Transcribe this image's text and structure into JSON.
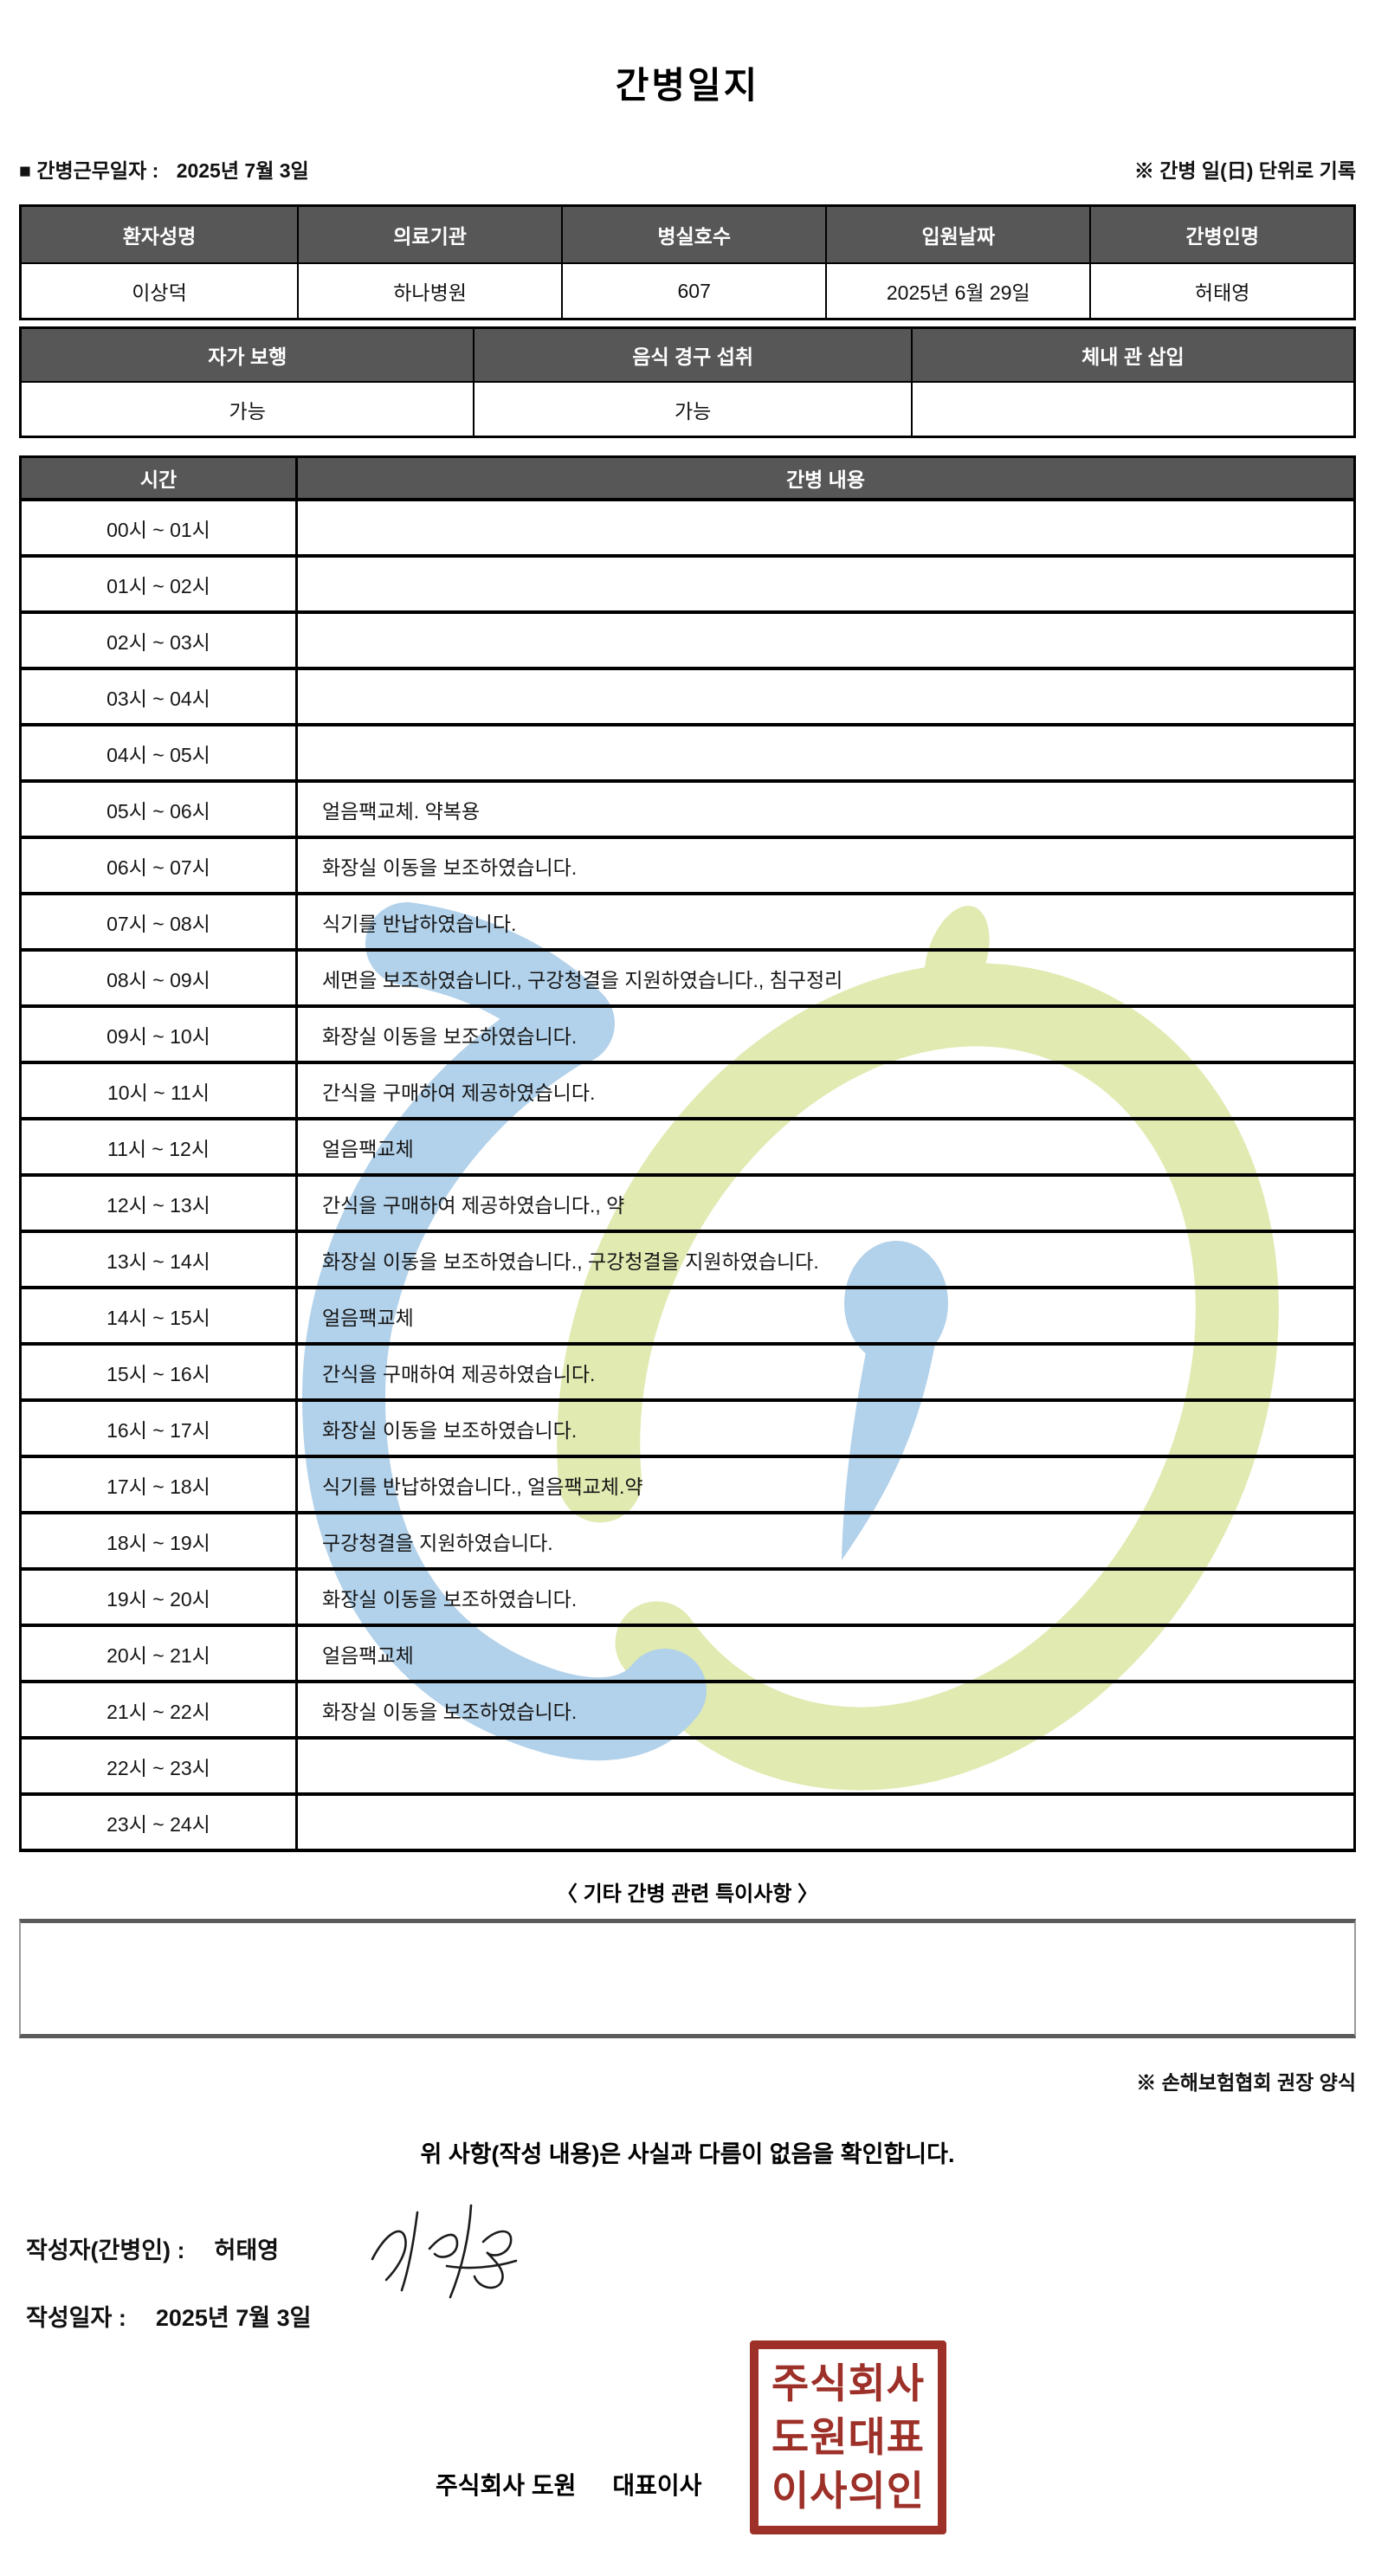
{
  "title": "간병일지",
  "meta": {
    "work_date_label": "■ 간병근무일자 :",
    "work_date_value": "2025년 7월 3일",
    "unit_note": "※ 간병 일(日) 단위로 기록"
  },
  "patient_table": {
    "headers": [
      "환자성명",
      "의료기관",
      "병실호수",
      "입원날짜",
      "간병인명"
    ],
    "values": [
      "이상덕",
      "하나병원",
      "607",
      "2025년 6월 29일",
      "허태영"
    ]
  },
  "status_table": {
    "headers": [
      "자가 보행",
      "음식 경구 섭취",
      "체내 관 삽입"
    ],
    "values": [
      "가능",
      "가능",
      ""
    ]
  },
  "log_table": {
    "time_header": "시간",
    "content_header": "간병 내용",
    "rows": [
      {
        "time": "00시 ~ 01시",
        "content": ""
      },
      {
        "time": "01시 ~ 02시",
        "content": ""
      },
      {
        "time": "02시 ~ 03시",
        "content": ""
      },
      {
        "time": "03시 ~ 04시",
        "content": ""
      },
      {
        "time": "04시 ~ 05시",
        "content": ""
      },
      {
        "time": "05시 ~ 06시",
        "content": "얼음팩교체. 약복용"
      },
      {
        "time": "06시 ~ 07시",
        "content": "화장실 이동을 보조하였습니다."
      },
      {
        "time": "07시 ~ 08시",
        "content": "식기를 반납하였습니다."
      },
      {
        "time": "08시 ~ 09시",
        "content": "세면을 보조하였습니다., 구강청결을 지원하였습니다., 침구정리"
      },
      {
        "time": "09시 ~ 10시",
        "content": "화장실 이동을 보조하였습니다."
      },
      {
        "time": "10시 ~ 11시",
        "content": "간식을 구매하여 제공하였습니다."
      },
      {
        "time": "11시 ~ 12시",
        "content": "얼음팩교체"
      },
      {
        "time": "12시 ~ 13시",
        "content": "간식을 구매하여 제공하였습니다., 약"
      },
      {
        "time": "13시 ~ 14시",
        "content": "화장실 이동을 보조하였습니다., 구강청결을 지원하였습니다."
      },
      {
        "time": "14시 ~ 15시",
        "content": "얼음팩교체"
      },
      {
        "time": "15시 ~ 16시",
        "content": "간식을 구매하여 제공하였습니다."
      },
      {
        "time": "16시 ~ 17시",
        "content": "화장실 이동을 보조하였습니다."
      },
      {
        "time": "17시 ~ 18시",
        "content": "식기를 반납하였습니다., 얼음팩교체.약"
      },
      {
        "time": "18시 ~ 19시",
        "content": "구강청결을 지원하였습니다."
      },
      {
        "time": "19시 ~ 20시",
        "content": "화장실 이동을 보조하였습니다."
      },
      {
        "time": "20시 ~ 21시",
        "content": "얼음팩교체"
      },
      {
        "time": "21시 ~ 22시",
        "content": "화장실 이동을 보조하였습니다."
      },
      {
        "time": "22시 ~ 23시",
        "content": ""
      },
      {
        "time": "23시 ~ 24시",
        "content": ""
      }
    ]
  },
  "notes": {
    "heading": "〈 기타 간병 관련 특이사항 〉",
    "content": "",
    "form_note": "※ 손해보험협회 권장 양식"
  },
  "footer": {
    "confirmation": "위 사항(작성 내용)은 사실과 다름이 없음을 확인합니다.",
    "writer_label": "작성자(간병인) :",
    "writer_name": "허태영",
    "write_date_label": "작성일자 :",
    "write_date_value": "2025년 7월 3일",
    "company_name": "주식회사 도원",
    "company_role": "대표이사",
    "stamp_rows": [
      "주식회사",
      "도원대표",
      "이사의인"
    ]
  },
  "colors": {
    "header_bg": "#575757",
    "stamp_red": "#9d3028",
    "watermark_blue": "#aecfe9",
    "watermark_green": "#dfe9ad"
  }
}
